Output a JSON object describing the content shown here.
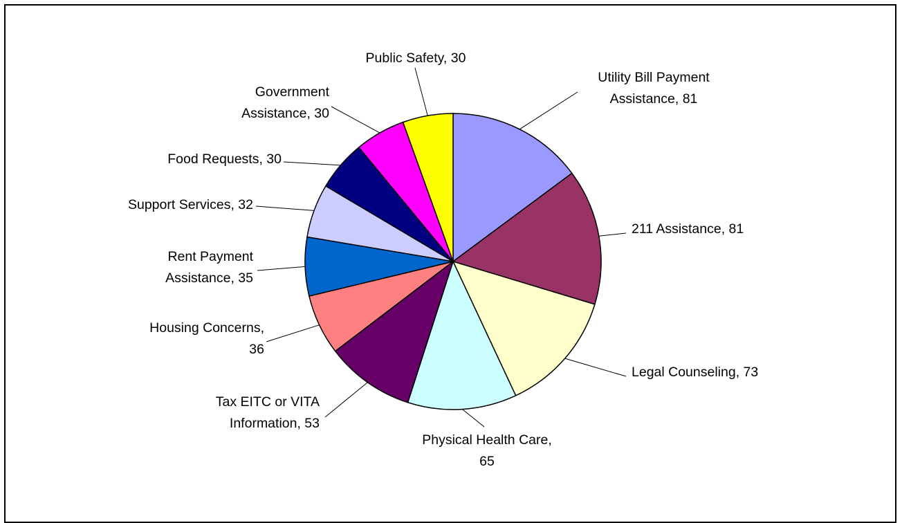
{
  "chart_data": {
    "type": "pie",
    "title": "",
    "slices": [
      {
        "label_lines": [
          "Utility Bill Payment",
          "Assistance, 81"
        ],
        "category": "Utility Bill Payment Assistance",
        "value": 81,
        "color": "#9999FF"
      },
      {
        "label_lines": [
          "211 Assistance, 81"
        ],
        "category": "211 Assistance",
        "value": 81,
        "color": "#993366"
      },
      {
        "label_lines": [
          "Legal Counseling, 73"
        ],
        "category": "Legal Counseling",
        "value": 73,
        "color": "#FFFFCC"
      },
      {
        "label_lines": [
          "Physical Health Care,",
          "65"
        ],
        "category": "Physical Health Care",
        "value": 65,
        "color": "#CCFFFF"
      },
      {
        "label_lines": [
          "Tax EITC or VITA",
          "Information, 53"
        ],
        "category": "Tax EITC or VITA Information",
        "value": 53,
        "color": "#660066"
      },
      {
        "label_lines": [
          "Housing Concerns,",
          "36"
        ],
        "category": "Housing Concerns",
        "value": 36,
        "color": "#FF8080"
      },
      {
        "label_lines": [
          "Rent Payment",
          "Assistance, 35"
        ],
        "category": "Rent Payment Assistance",
        "value": 35,
        "color": "#0066CC"
      },
      {
        "label_lines": [
          "Support Services, 32"
        ],
        "category": "Support Services",
        "value": 32,
        "color": "#CCCCFF"
      },
      {
        "label_lines": [
          "Food Requests, 30"
        ],
        "category": "Food Requests",
        "value": 30,
        "color": "#000080"
      },
      {
        "label_lines": [
          "Government",
          "Assistance, 30"
        ],
        "category": "Government Assistance",
        "value": 30,
        "color": "#FF00FF"
      },
      {
        "label_lines": [
          "Public Safety, 30"
        ],
        "category": "Public Safety",
        "value": 30,
        "color": "#FFFF00"
      }
    ],
    "legend": "none",
    "start_angle": "12 o'clock",
    "direction": "clockwise"
  }
}
